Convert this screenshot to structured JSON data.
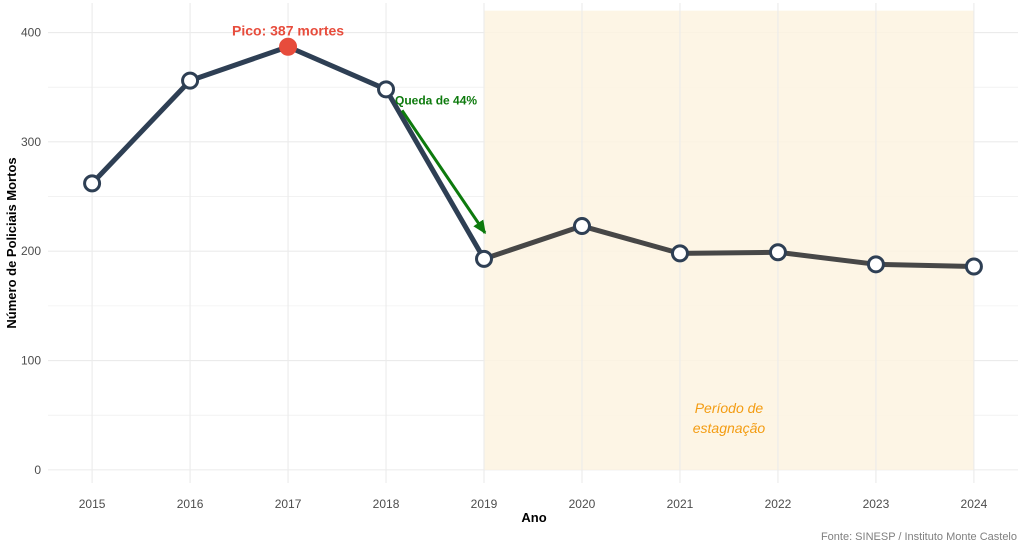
{
  "chart_data": {
    "type": "line",
    "title": "",
    "xlabel": "Ano",
    "ylabel": "Número de Policiais Mortos",
    "caption": "Fonte: SINESP / Instituto Monte Castelo",
    "x": [
      2015,
      2016,
      2017,
      2018,
      2019,
      2020,
      2021,
      2022,
      2023,
      2024
    ],
    "values": [
      262,
      356,
      387,
      348,
      193,
      223,
      198,
      199,
      188,
      186
    ],
    "x_ticks": [
      "2015",
      "2016",
      "2017",
      "2018",
      "2019",
      "2020",
      "2021",
      "2022",
      "2023",
      "2024"
    ],
    "y_ticks": [
      "0",
      "100",
      "200",
      "300",
      "400"
    ],
    "xlim": [
      2014.55,
      2024.45
    ],
    "ylim": [
      -12,
      427
    ],
    "grid": true,
    "legend": "none",
    "colors": {
      "line_before": "#2e3f54",
      "line_after": "#474747",
      "peak_point": "#e74c3c",
      "drop_arrow": "#0d7a0d",
      "period_fill": "#fdf3e1",
      "period_text": "#f39c12",
      "grid": "#ebebeb"
    },
    "annotations": {
      "peak": {
        "label": "Pico: 387 mortes",
        "x": 2017,
        "y": 387
      },
      "drop": {
        "label": "Queda de 44%",
        "from_year": 2018,
        "to_year": 2019
      },
      "period": {
        "label_line1": "Período de",
        "label_line2": "estagnação",
        "x_start": 2019,
        "x_end": 2024,
        "y_top": 420
      }
    }
  }
}
